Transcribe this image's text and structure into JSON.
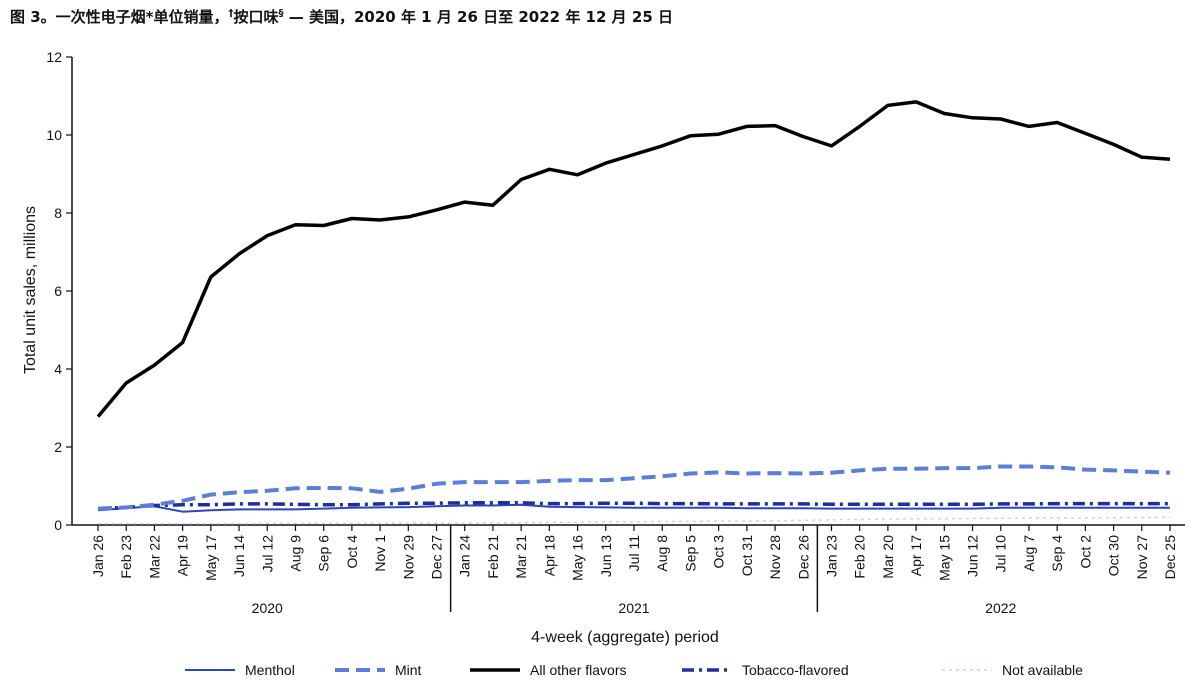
{
  "figure": {
    "title_prefix": "图 3。一次性电子烟*单位销量，",
    "title_sup1": "†",
    "title_mid": "按口味",
    "title_sup2": "§",
    "title_suffix": " — 美国，2020 年 1 月 26 日至 2022 年 12 月 25 日"
  },
  "colors": {
    "menthol": "#2b46b8",
    "mint": "#5b7fd6",
    "other": "#000000",
    "tobacco": "#1d2f9e",
    "na": "#c9d3ee",
    "axis": "#111111"
  },
  "chart_data": {
    "type": "line",
    "ylabel": "Total unit sales, millions",
    "xlabel": "4-week (aggregate) period",
    "ylim": [
      0,
      12
    ],
    "yticks": [
      "0",
      "2",
      "4",
      "6",
      "8",
      "10",
      "12"
    ],
    "grid": false,
    "legend_position": "bottom",
    "years": [
      "2020",
      "2021",
      "2022"
    ],
    "categories": [
      "Jan 26",
      "Feb 23",
      "Mar 22",
      "Apr 19",
      "May 17",
      "Jun 14",
      "Jul 12",
      "Aug 9",
      "Sep 6",
      "Oct 4",
      "Nov 1",
      "Nov 29",
      "Dec 27",
      "Jan 24",
      "Feb 21",
      "Mar 21",
      "Apr 18",
      "May 16",
      "Jun 13",
      "Jul 11",
      "Aug 8",
      "Sep 5",
      "Oct 3",
      "Oct 31",
      "Nov 28",
      "Dec 26",
      "Jan 23",
      "Feb 20",
      "Mar 20",
      "Apr 17",
      "May 15",
      "Jun 12",
      "Jul 10",
      "Aug 7",
      "Sep 4",
      "Oct 2",
      "Oct 30",
      "Nov 27",
      "Dec 25"
    ],
    "series": [
      {
        "name": "Menthol",
        "style": "solid-thin",
        "values": [
          0.38,
          0.43,
          0.48,
          0.34,
          0.38,
          0.4,
          0.4,
          0.4,
          0.42,
          0.44,
          0.45,
          0.46,
          0.48,
          0.5,
          0.5,
          0.52,
          0.47,
          0.46,
          0.45,
          0.44,
          0.44,
          0.44,
          0.44,
          0.43,
          0.43,
          0.43,
          0.42,
          0.42,
          0.42,
          0.42,
          0.42,
          0.42,
          0.44,
          0.44,
          0.44,
          0.44,
          0.44,
          0.44,
          0.44
        ]
      },
      {
        "name": "Mint",
        "style": "dashed",
        "values": [
          0.42,
          0.45,
          0.52,
          0.62,
          0.78,
          0.84,
          0.88,
          0.94,
          0.95,
          0.94,
          0.85,
          0.93,
          1.06,
          1.1,
          1.1,
          1.1,
          1.13,
          1.15,
          1.15,
          1.2,
          1.25,
          1.32,
          1.35,
          1.32,
          1.33,
          1.32,
          1.34,
          1.4,
          1.44,
          1.44,
          1.46,
          1.46,
          1.5,
          1.5,
          1.48,
          1.42,
          1.4,
          1.37,
          1.34
        ]
      },
      {
        "name": "All other flavors",
        "style": "solid-thick",
        "values": [
          2.78,
          3.64,
          4.1,
          4.68,
          6.36,
          6.95,
          7.42,
          7.7,
          7.68,
          7.86,
          7.82,
          7.9,
          8.08,
          8.28,
          8.2,
          8.86,
          9.12,
          8.98,
          9.28,
          9.5,
          9.72,
          9.98,
          10.02,
          10.22,
          10.24,
          9.96,
          9.72,
          10.22,
          10.76,
          10.85,
          10.55,
          10.44,
          10.41,
          10.22,
          10.32,
          10.04,
          9.76,
          9.43,
          9.38
        ]
      },
      {
        "name": "Tobacco-flavored",
        "style": "dash-dot",
        "values": [
          0.42,
          0.45,
          0.5,
          0.52,
          0.52,
          0.54,
          0.54,
          0.53,
          0.52,
          0.52,
          0.54,
          0.56,
          0.56,
          0.57,
          0.57,
          0.57,
          0.55,
          0.55,
          0.56,
          0.56,
          0.55,
          0.55,
          0.54,
          0.54,
          0.54,
          0.54,
          0.53,
          0.53,
          0.53,
          0.53,
          0.53,
          0.53,
          0.54,
          0.54,
          0.55,
          0.55,
          0.55,
          0.55,
          0.55
        ]
      },
      {
        "name": "Not available",
        "style": "dotted-light",
        "values": [
          0.03,
          0.03,
          0.03,
          0.03,
          0.03,
          0.03,
          0.04,
          0.04,
          0.04,
          0.04,
          0.04,
          0.05,
          0.05,
          0.05,
          0.06,
          0.06,
          0.07,
          0.07,
          0.08,
          0.08,
          0.09,
          0.09,
          0.1,
          0.1,
          0.11,
          0.12,
          0.13,
          0.14,
          0.15,
          0.16,
          0.16,
          0.17,
          0.17,
          0.18,
          0.18,
          0.18,
          0.19,
          0.19,
          0.2
        ]
      }
    ]
  }
}
